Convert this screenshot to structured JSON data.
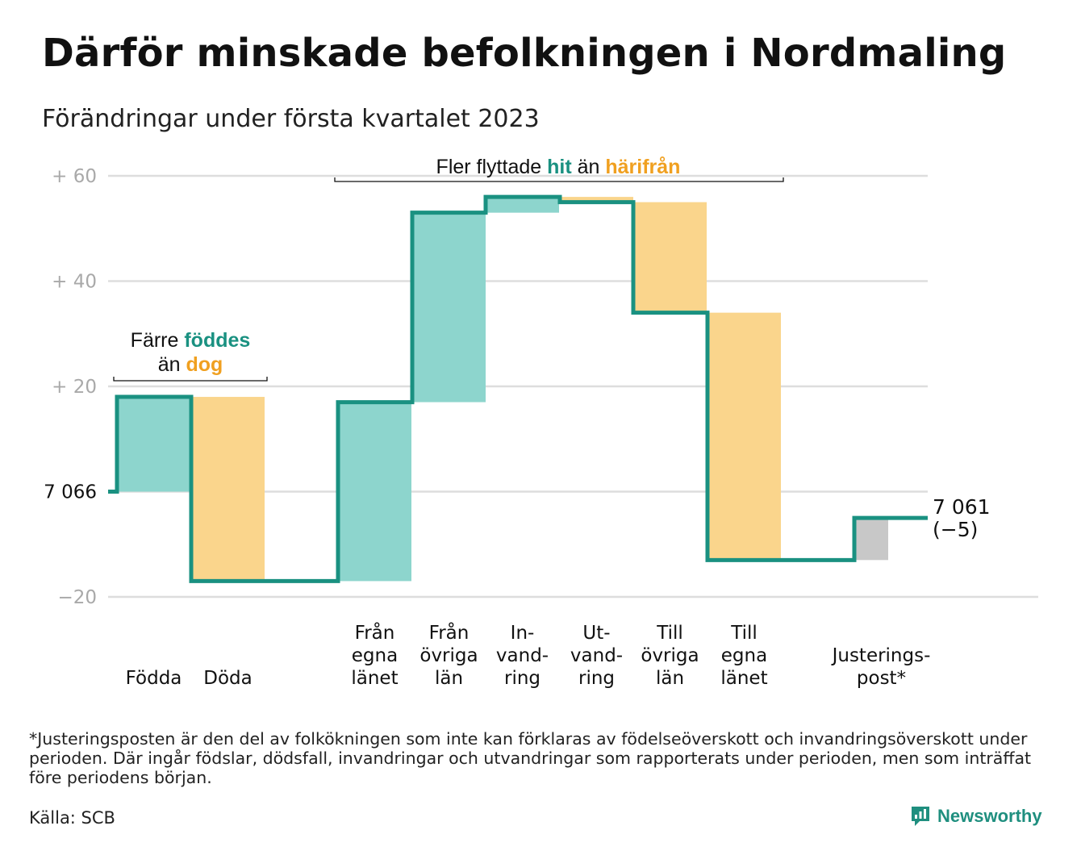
{
  "title": "Därför minskade befolkningen i Nordmaling",
  "subtitle": "Förändringar under första kvartalet 2023",
  "colors": {
    "teal": "#1a9181",
    "teal_fill": "#8dd5cd",
    "orange_fill": "#fad58c",
    "orange_text": "#f0a020",
    "gray_fill": "#c8c8c8",
    "grid": "#dddddd",
    "axis_text": "#a9a9a9"
  },
  "chart_data": {
    "type": "waterfall",
    "ylim": [
      -20,
      60
    ],
    "yticks": [
      {
        "value": 60,
        "label": "+ 60"
      },
      {
        "value": 40,
        "label": "+ 40"
      },
      {
        "value": 20,
        "label": "+ 20"
      },
      {
        "value": 0,
        "label": "7 066"
      },
      {
        "value": -20,
        "label": "−20"
      }
    ],
    "start_population": "7 066",
    "bars": [
      {
        "label": "Födda",
        "change": 18,
        "from": 0,
        "to": 18,
        "kind": "in"
      },
      {
        "label": "Döda",
        "change": -35,
        "from": 18,
        "to": -17,
        "kind": "out"
      },
      {
        "label": "Från egna länet",
        "change": 34,
        "from": -17,
        "to": 17,
        "kind": "in"
      },
      {
        "label": "Från övriga län",
        "change": 36,
        "from": 17,
        "to": 53,
        "kind": "in"
      },
      {
        "label": "Invandring",
        "change": 3,
        "from": 53,
        "to": 56,
        "kind": "in"
      },
      {
        "label": "Utvandring",
        "change": -1,
        "from": 56,
        "to": 55,
        "kind": "out"
      },
      {
        "label": "Till övriga län",
        "change": -21,
        "from": 55,
        "to": 34,
        "kind": "out"
      },
      {
        "label": "Till egna länet",
        "change": -47,
        "from": 34,
        "to": -13,
        "kind": "out"
      },
      {
        "label": "Justeringspost*",
        "change": 8,
        "from": -13,
        "to": -5,
        "kind": "adjust"
      }
    ],
    "end_value": -5,
    "end_labels": [
      "7 061",
      "(−5)"
    ],
    "category_labels": [
      [
        "Födda"
      ],
      [
        "Döda"
      ],
      [
        "Från",
        "egna",
        "länet"
      ],
      [
        "Från",
        "övriga",
        "län"
      ],
      [
        "In-",
        "vand-",
        "ring"
      ],
      [
        "Ut-",
        "vand-",
        "ring"
      ],
      [
        "Till",
        "övriga",
        "län"
      ],
      [
        "Till",
        "egna",
        "länet"
      ],
      [
        "Justerings-",
        "post*"
      ]
    ],
    "annotations": {
      "births": {
        "text1": "Färre ",
        "highlight1": "föddes",
        "text2": "än ",
        "highlight2": "dog"
      },
      "moves": {
        "text1": "Fler flyttade ",
        "highlight1": "hit",
        "text2": " än ",
        "highlight2": "härifrån"
      }
    }
  },
  "footnote": "*Justeringsposten är den del av folkökningen som inte kan förklaras av födelseöverskott och invandringsöverskott under perioden. Där ingår födslar, dödsfall, invandringar och utvandringar som rapporterats under perioden, men som inträffat före periodens början.",
  "source": "Källa: SCB",
  "brand": "Newsworthy",
  "brand_icon": "newsworthy-logo-icon"
}
